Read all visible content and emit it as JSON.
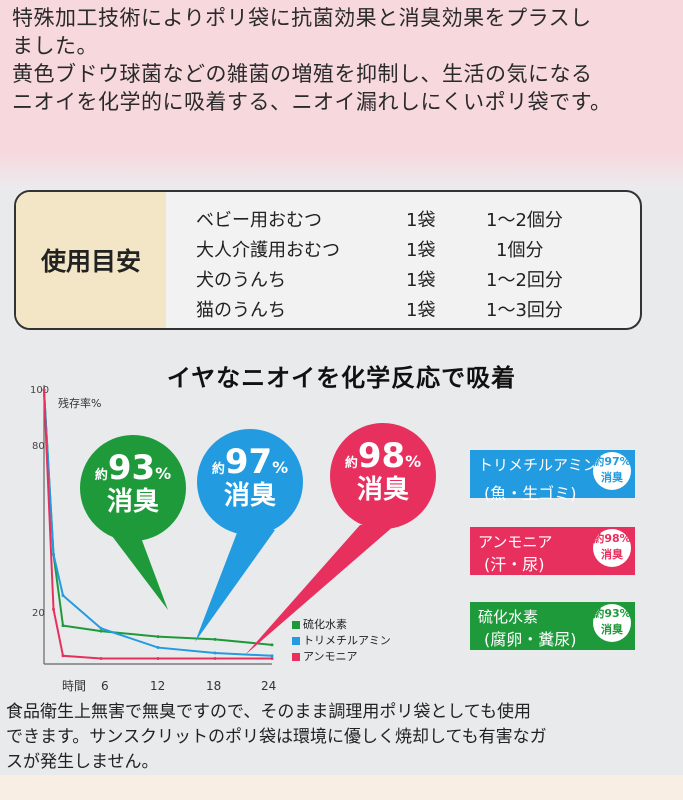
{
  "intro": {
    "line1": "特殊加工技術によりポリ袋に抗菌効果と消臭効果をプラスし",
    "line2": "ました。",
    "line3": "黄色ブドウ球菌などの雑菌の増殖を抑制し、生活の気になる",
    "line4": "ニオイを化学的に吸着する、ニオイ漏れしにくいポリ袋です。"
  },
  "usage": {
    "label": "使用目安",
    "rows": [
      {
        "item": "ベビー用おむつ",
        "bags": "1袋",
        "amount": "1〜2個分"
      },
      {
        "item": "大人介護用おむつ",
        "bags": "1袋",
        "amount": "1個分"
      },
      {
        "item": "犬のうんち",
        "bags": "1袋",
        "amount": "1〜2回分"
      },
      {
        "item": "猫のうんち",
        "bags": "1袋",
        "amount": "1〜3回分"
      }
    ]
  },
  "section_title": "イヤなニオイを化学反応で吸着",
  "bubbles": [
    {
      "prefix": "約",
      "value": "93",
      "unit": "%",
      "label": "消臭",
      "color": "#1e9a3b"
    },
    {
      "prefix": "約",
      "value": "97",
      "unit": "%",
      "label": "消臭",
      "color": "#239be0"
    },
    {
      "prefix": "約",
      "value": "98",
      "unit": "%",
      "label": "消臭",
      "color": "#e8305f"
    }
  ],
  "tags": [
    {
      "name": "トリメチルアミン",
      "sub": "(魚・生ゴミ)",
      "pct": "約97%",
      "pct_label": "消臭",
      "color": "#239be0"
    },
    {
      "name": "アンモニア",
      "sub": "(汗・尿)",
      "pct": "約98%",
      "pct_label": "消臭",
      "color": "#e8305f"
    },
    {
      "name": "硫化水素",
      "sub": "(腐卵・糞尿)",
      "pct": "約93%",
      "pct_label": "消臭",
      "color": "#1e9a3b"
    }
  ],
  "chart_data": {
    "type": "line",
    "ylabel": "残存率%",
    "xlabel": "時間",
    "y_ticks": [
      "100",
      "80",
      "20"
    ],
    "x_ticks": [
      "6",
      "12",
      "18",
      "24"
    ],
    "xlim": [
      0,
      24
    ],
    "ylim": [
      0,
      100
    ],
    "x": [
      0,
      1,
      2,
      6,
      12,
      18,
      24
    ],
    "series": [
      {
        "name": "硫化水素",
        "color": "#1e9a3b",
        "values": [
          100,
          40,
          14,
          12,
          10,
          9,
          7
        ]
      },
      {
        "name": "トリメチルアミン",
        "color": "#239be0",
        "values": [
          100,
          40,
          25,
          13,
          6,
          4,
          3
        ]
      },
      {
        "name": "アンモニア",
        "color": "#e8305f",
        "values": [
          100,
          20,
          3,
          2,
          2,
          2,
          2
        ]
      }
    ]
  },
  "footer": {
    "line1": "食品衛生上無害で無臭ですので、そのまま調理用ポリ袋としても使用",
    "line2": "できます。サンスクリットのポリ袋は環境に優しく焼却しても有害なガ",
    "line3": "スが発生しません。"
  }
}
